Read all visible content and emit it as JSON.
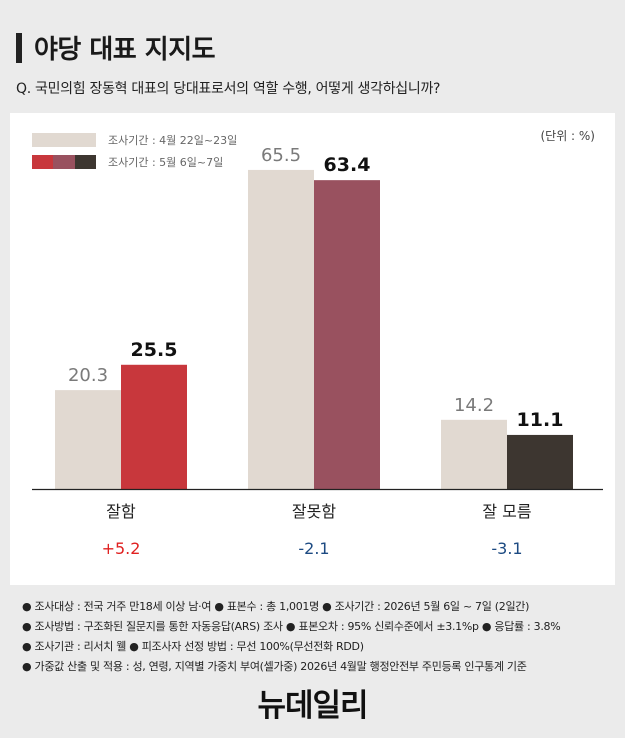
{
  "title": "야당 대표 지지도",
  "question": "Q. 국민의힘 장동혁 대표의 당대표로서의 역할 수행, 어떻게 생각하십니까?",
  "unit_label": "(단위 : %)",
  "colors": {
    "prev": "#e1d9d1",
    "curr": [
      "#c8373c",
      "#99515f",
      "#3d3630"
    ],
    "change_positive": "#e02020",
    "change_negative": "#1c4a82"
  },
  "chart_data": {
    "type": "bar",
    "categories": [
      "잘함",
      "잘못함",
      "잘 모름"
    ],
    "series": [
      {
        "name": "조사기간 : 4월 22일~23일",
        "values": [
          20.3,
          65.5,
          14.2
        ]
      },
      {
        "name": "조사기간 : 5월 6일~7일",
        "values": [
          25.5,
          63.4,
          11.1
        ]
      }
    ],
    "changes": [
      "+5.2",
      "-2.1",
      "-3.1"
    ],
    "ylim": [
      0,
      70
    ],
    "grid": false,
    "legend_position": "top-left"
  },
  "notes": [
    "● 조사대상 : 전국 거주 만18세 이상 남·여  ● 표본수 : 총 1,001명  ● 조사기간 : 2026년 5월 6일 ~ 7일 (2일간)",
    "● 조사방법 : 구조화된 질문지를 통한 자동응답(ARS) 조사  ● 표본오차 : 95% 신뢰수준에서 ±3.1%p  ● 응답률 : 3.8%",
    "● 조사기관 : 리서치 웰  ● 피조사자 선정 방법 : 무선 100%(무선전화 RDD)",
    "● 가중값 산출 및 적용 : 성, 연령, 지역별 가중치 부여(셀가중) 2026년 4월말 행정안전부 주민등록 인구통계 기준"
  ],
  "logo": "뉴데일리"
}
